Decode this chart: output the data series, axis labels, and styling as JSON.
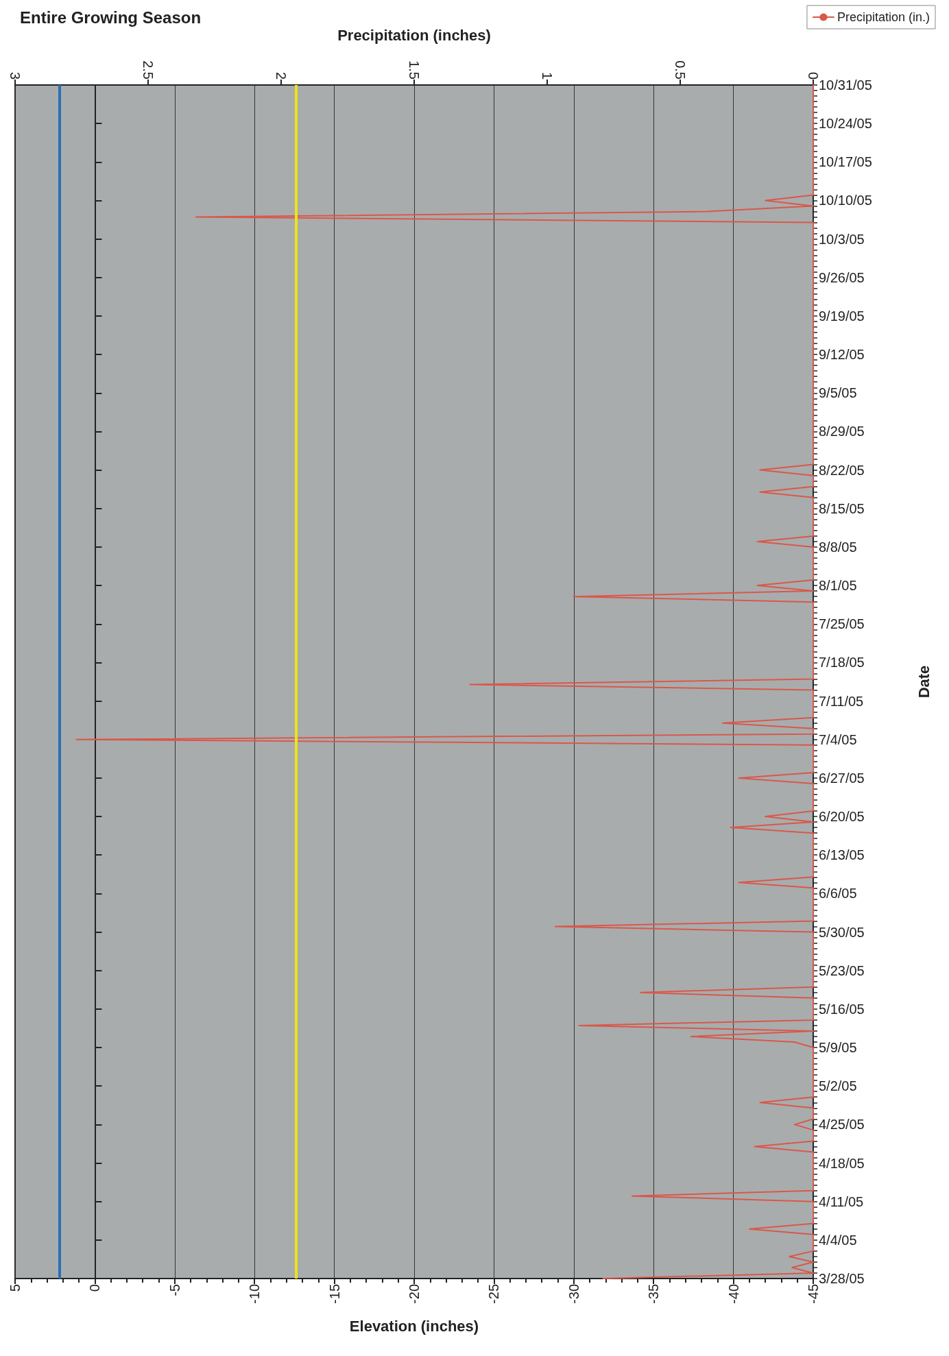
{
  "chart_data": {
    "type": "line",
    "title": "Entire Growing Season",
    "xlabel": "Elevation (inches)",
    "x2label": "Precipitation (inches)",
    "ylabel": "Date",
    "orientation": "horizontal",
    "xlim": [
      5,
      -45
    ],
    "xticks": [
      5,
      0,
      -5,
      -10,
      -15,
      -20,
      -25,
      -30,
      -35,
      -40,
      -45
    ],
    "x2lim": [
      3,
      0
    ],
    "x2ticks": [
      3,
      2.5,
      2,
      1.5,
      1,
      0.5,
      0
    ],
    "ylim": [
      "--03-28",
      "--10-31"
    ],
    "yticks": [
      {
        "value": "--03-28",
        "label": "3/28/05"
      },
      {
        "value": "--04-04",
        "label": "4/4/05"
      },
      {
        "value": "--04-11",
        "label": "4/11/05"
      },
      {
        "value": "--04-18",
        "label": "4/18/05"
      },
      {
        "value": "--04-25",
        "label": "4/25/05"
      },
      {
        "value": "--05-02",
        "label": "5/2/05"
      },
      {
        "value": "--05-09",
        "label": "5/9/05"
      },
      {
        "value": "--05-16",
        "label": "5/16/05"
      },
      {
        "value": "--05-23",
        "label": "5/23/05"
      },
      {
        "value": "--05-30",
        "label": "5/30/05"
      },
      {
        "value": "--06-06",
        "label": "6/6/05"
      },
      {
        "value": "--06-13",
        "label": "6/13/05"
      },
      {
        "value": "--06-20",
        "label": "6/20/05"
      },
      {
        "value": "--06-27",
        "label": "6/27/05"
      },
      {
        "value": "--07-04",
        "label": "7/4/05"
      },
      {
        "value": "--07-11",
        "label": "7/11/05"
      },
      {
        "value": "--07-18",
        "label": "7/18/05"
      },
      {
        "value": "--07-25",
        "label": "7/25/05"
      },
      {
        "value": "--08-01",
        "label": "8/1/05"
      },
      {
        "value": "--08-08",
        "label": "8/8/05"
      },
      {
        "value": "--08-15",
        "label": "8/15/05"
      },
      {
        "value": "--08-22",
        "label": "8/22/05"
      },
      {
        "value": "--08-29",
        "label": "8/29/05"
      },
      {
        "value": "--09-05",
        "label": "9/5/05"
      },
      {
        "value": "--09-12",
        "label": "9/12/05"
      },
      {
        "value": "--09-19",
        "label": "9/19/05"
      },
      {
        "value": "--09-26",
        "label": "9/26/05"
      },
      {
        "value": "--10-03",
        "label": "10/3/05"
      },
      {
        "value": "--10-10",
        "label": "10/10/05"
      },
      {
        "value": "--10-17",
        "label": "10/17/05"
      },
      {
        "value": "--10-24",
        "label": "10/24/05"
      },
      {
        "value": "--10-31",
        "label": "10/31/05"
      }
    ],
    "grid": "x",
    "legend": "top right",
    "marker": "none",
    "line_style": "solid",
    "series": [
      {
        "name": "Precipitation (in.)",
        "color": "#d9584a",
        "axis": "x2",
        "x": [
          "--03-28",
          "--03-29",
          "--03-30",
          "--03-31",
          "--04-01",
          "--04-02",
          "--04-05",
          "--04-06",
          "--04-07",
          "--04-11",
          "--04-12",
          "--04-13",
          "--04-20",
          "--04-21",
          "--04-22",
          "--04-24",
          "--04-25",
          "--04-26",
          "--04-28",
          "--04-29",
          "--04-30",
          "--05-09",
          "--05-10",
          "--05-11",
          "--05-12",
          "--05-13",
          "--05-14",
          "--05-18",
          "--05-19",
          "--05-20",
          "--05-30",
          "--05-31",
          "--06-01",
          "--06-07",
          "--06-08",
          "--06-09",
          "--06-17",
          "--06-18",
          "--06-19",
          "--06-20",
          "--06-21",
          "--06-26",
          "--06-27",
          "--06-28",
          "--07-03",
          "--07-04",
          "--07-05",
          "--07-06",
          "--07-07",
          "--07-08",
          "--07-13",
          "--07-14",
          "--07-15",
          "--07-29",
          "--07-30",
          "--07-31",
          "--08-01",
          "--08-02",
          "--08-08",
          "--08-09",
          "--08-10",
          "--08-17",
          "--08-18",
          "--08-19",
          "--08-21",
          "--08-22",
          "--08-23",
          "--10-06",
          "--10-07",
          "--10-08",
          "--10-09",
          "--10-10",
          "--10-11",
          "--10-31"
        ],
        "values": [
          0.79,
          0,
          0.08,
          0,
          0.09,
          0,
          0,
          0.24,
          0,
          0,
          0.68,
          0,
          0,
          0.22,
          0,
          0,
          0.07,
          0,
          0,
          0.2,
          0,
          0,
          0.07,
          0.46,
          0,
          0.88,
          0,
          0,
          0.65,
          0,
          0,
          0.97,
          0,
          0,
          0.28,
          0,
          0,
          0.31,
          0,
          0.18,
          0,
          0,
          0.28,
          0,
          0,
          2.77,
          0,
          0,
          0.34,
          0,
          0,
          1.29,
          0,
          0,
          0.9,
          0,
          0.21,
          0,
          0,
          0.21,
          0,
          0,
          0.2,
          0,
          0,
          0.2,
          0,
          0,
          2.32,
          0.4,
          0,
          0.18,
          0,
          0
        ]
      }
    ],
    "ref_lines": [
      {
        "axis": "x",
        "value": 2.2,
        "color": "#2a6fb5"
      },
      {
        "axis": "x",
        "value": -12.6,
        "color": "#f0e21a"
      }
    ]
  }
}
